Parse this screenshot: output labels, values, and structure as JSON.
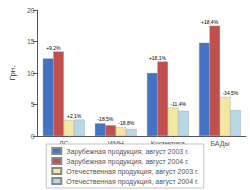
{
  "chart_data": {
    "type": "bar",
    "categories": [
      "ЛС",
      "ИМН",
      "Косметика",
      "БАДы"
    ],
    "series": [
      {
        "name": "Зарубежная продукция, август 2003 г.",
        "color": "#4472c4",
        "values": [
          12.3,
          2.0,
          10.0,
          14.8
        ]
      },
      {
        "name": "Зарубежная продукция, август 2004 г.",
        "color": "#c0504d",
        "values": [
          13.4,
          1.7,
          11.8,
          17.5
        ]
      },
      {
        "name": "Отечественная продукция, август 2003 г.",
        "color": "#f2e8a0",
        "values": [
          2.5,
          1.4,
          4.5,
          6.2
        ]
      },
      {
        "name": "Отечественная продукция, август 2004 г.",
        "color": "#b8d8e8",
        "values": [
          2.6,
          1.1,
          4.0,
          4.1
        ]
      }
    ],
    "annotations": [
      [
        "+9,2%",
        "+2,1%"
      ],
      [
        "-18,5%",
        "-18,8%"
      ],
      [
        "+18,1%",
        "-11,4%"
      ],
      [
        "+18,4%",
        "-34,5%"
      ]
    ],
    "ylabel": "Грн.",
    "ylim": [
      0,
      20
    ],
    "yticks": [
      0,
      5,
      10,
      15,
      20
    ],
    "grid": false,
    "legend": "bottom"
  }
}
